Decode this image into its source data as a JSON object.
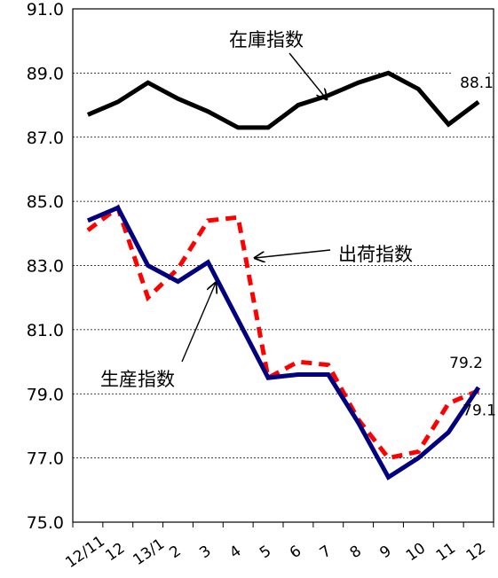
{
  "chart_data": {
    "type": "line",
    "title": "",
    "xlabel": "",
    "ylabel": "",
    "categories": [
      "12/11",
      "12",
      "13/1",
      "2",
      "3",
      "4",
      "5",
      "6",
      "7",
      "8",
      "9",
      "10",
      "11",
      "12"
    ],
    "ylim": [
      75.0,
      91.0
    ],
    "yticks": [
      "75.0",
      "77.0",
      "79.0",
      "81.0",
      "83.0",
      "85.0",
      "87.0",
      "89.0",
      "91.0"
    ],
    "grid": true,
    "series": [
      {
        "name": "在庫指数",
        "color": "#000000",
        "style": "solid",
        "values": [
          87.7,
          88.1,
          88.7,
          88.2,
          87.8,
          87.3,
          87.3,
          88.0,
          88.3,
          88.7,
          89.0,
          88.5,
          87.4,
          88.1
        ],
        "end_label": "88.1"
      },
      {
        "name": "出荷指数",
        "color": "#ff0000",
        "style": "dashed",
        "values": [
          84.1,
          84.8,
          82.0,
          82.9,
          84.4,
          84.5,
          79.5,
          80.0,
          79.9,
          78.2,
          77.0,
          77.2,
          78.7,
          79.1
        ],
        "end_label": "79.1"
      },
      {
        "name": "生産指数",
        "color": "#000080",
        "style": "solid",
        "values": [
          84.4,
          84.8,
          83.0,
          82.5,
          83.1,
          81.3,
          79.5,
          79.6,
          79.6,
          78.1,
          76.4,
          77.0,
          77.8,
          79.2
        ],
        "end_label": "79.2"
      }
    ],
    "annotations": [
      {
        "text": "在庫指数",
        "series": "在庫指数"
      },
      {
        "text": "出荷指数",
        "series": "出荷指数"
      },
      {
        "text": "生産指数",
        "series": "生産指数"
      }
    ]
  }
}
